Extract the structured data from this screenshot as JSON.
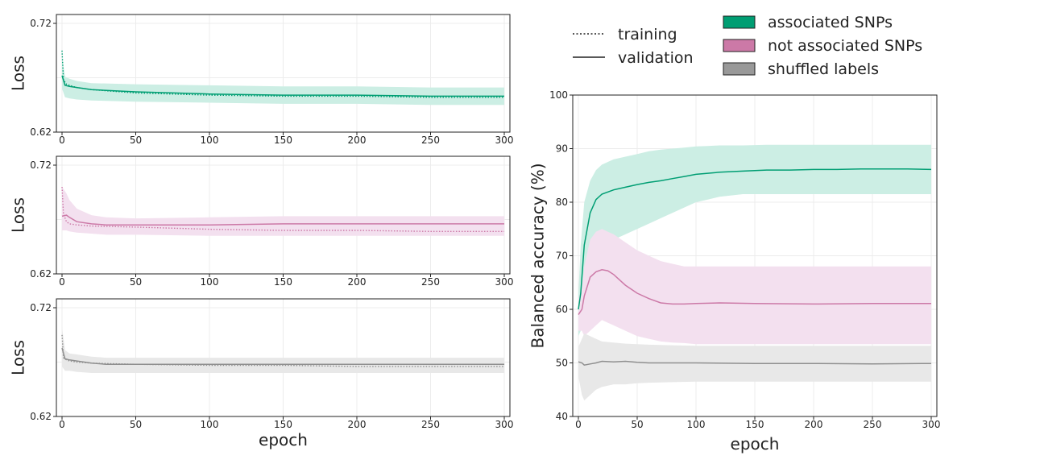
{
  "colors": {
    "associated": "#009e73",
    "not_associated": "#cc79a7",
    "shuffled": "#8f8f8f",
    "associated_band": "#cceee4",
    "not_associated_band": "#f3e0ef",
    "shuffled_band": "#e8e8e8"
  },
  "legend": {
    "line_styles": [
      {
        "label": "training",
        "style": "dotted"
      },
      {
        "label": "validation",
        "style": "solid"
      }
    ],
    "groups": [
      {
        "label": "associated SNPs",
        "color": "#009e73"
      },
      {
        "label": "not associated SNPs",
        "color": "#cc79a7"
      },
      {
        "label": "shuffled labels",
        "color": "#999999"
      }
    ]
  },
  "chart_data": [
    {
      "type": "line",
      "panel": "loss-associated",
      "ylabel": "Loss",
      "xlabel": "",
      "xlim": [
        0,
        300
      ],
      "ylim": [
        0.62,
        0.72
      ],
      "xticks": [
        0,
        50,
        100,
        150,
        200,
        250,
        300
      ],
      "yticks": [
        0.62,
        0.72
      ],
      "series": [
        {
          "style": "validation",
          "color": "#009e73",
          "x": [
            0,
            2,
            5,
            10,
            20,
            50,
            100,
            150,
            200,
            250,
            300
          ],
          "y": [
            0.672,
            0.663,
            0.662,
            0.661,
            0.659,
            0.657,
            0.655,
            0.654,
            0.654,
            0.653,
            0.653
          ],
          "band_lower": [
            0.66,
            0.652,
            0.651,
            0.65,
            0.649,
            0.648,
            0.647,
            0.646,
            0.646,
            0.645,
            0.645
          ],
          "band_upper": [
            0.69,
            0.671,
            0.669,
            0.667,
            0.665,
            0.664,
            0.663,
            0.662,
            0.662,
            0.661,
            0.661
          ]
        },
        {
          "style": "training",
          "color": "#009e73",
          "x": [
            0,
            1,
            3,
            5,
            10,
            20,
            50,
            100,
            150,
            200,
            250,
            300
          ],
          "y": [
            0.695,
            0.668,
            0.664,
            0.663,
            0.661,
            0.659,
            0.656,
            0.654,
            0.653,
            0.653,
            0.652,
            0.652
          ]
        }
      ]
    },
    {
      "type": "line",
      "panel": "loss-not-associated",
      "ylabel": "Loss",
      "xlabel": "",
      "xlim": [
        0,
        300
      ],
      "ylim": [
        0.62,
        0.72
      ],
      "xticks": [
        0,
        50,
        100,
        150,
        200,
        250,
        300
      ],
      "yticks": [
        0.62,
        0.72
      ],
      "series": [
        {
          "style": "validation",
          "color": "#cc79a7",
          "x": [
            0,
            3,
            5,
            10,
            20,
            30,
            50,
            100,
            150,
            200,
            250,
            300
          ],
          "y": [
            0.673,
            0.674,
            0.672,
            0.668,
            0.666,
            0.665,
            0.665,
            0.665,
            0.666,
            0.666,
            0.666,
            0.666
          ],
          "band_lower": [
            0.66,
            0.66,
            0.659,
            0.658,
            0.657,
            0.656,
            0.656,
            0.655,
            0.655,
            0.655,
            0.655,
            0.655
          ],
          "band_upper": [
            0.7,
            0.694,
            0.688,
            0.68,
            0.674,
            0.672,
            0.671,
            0.672,
            0.673,
            0.673,
            0.673,
            0.673
          ]
        },
        {
          "style": "training",
          "color": "#cc79a7",
          "x": [
            0,
            1,
            3,
            5,
            10,
            20,
            50,
            100,
            150,
            200,
            250,
            300
          ],
          "y": [
            0.7,
            0.675,
            0.668,
            0.666,
            0.665,
            0.664,
            0.663,
            0.661,
            0.66,
            0.66,
            0.659,
            0.659
          ]
        }
      ]
    },
    {
      "type": "line",
      "panel": "loss-shuffled",
      "ylabel": "Loss",
      "xlabel": "epoch",
      "xlim": [
        0,
        300
      ],
      "ylim": [
        0.62,
        0.72
      ],
      "xticks": [
        0,
        50,
        100,
        150,
        200,
        250,
        300
      ],
      "yticks": [
        0.62,
        0.72
      ],
      "series": [
        {
          "style": "validation",
          "color": "#8f8f8f",
          "x": [
            0,
            2,
            5,
            10,
            20,
            30,
            50,
            100,
            150,
            200,
            250,
            300
          ],
          "y": [
            0.683,
            0.673,
            0.672,
            0.671,
            0.669,
            0.668,
            0.668,
            0.668,
            0.668,
            0.668,
            0.668,
            0.668
          ],
          "band_lower": [
            0.666,
            0.662,
            0.662,
            0.661,
            0.66,
            0.66,
            0.66,
            0.66,
            0.66,
            0.66,
            0.66,
            0.66
          ],
          "band_upper": [
            0.702,
            0.681,
            0.678,
            0.677,
            0.675,
            0.674,
            0.674,
            0.674,
            0.674,
            0.674,
            0.674,
            0.674
          ]
        },
        {
          "style": "training",
          "color": "#8f8f8f",
          "x": [
            0,
            1,
            3,
            5,
            10,
            20,
            50,
            100,
            150,
            200,
            250,
            300
          ],
          "y": [
            0.695,
            0.674,
            0.672,
            0.671,
            0.67,
            0.669,
            0.668,
            0.667,
            0.667,
            0.666,
            0.666,
            0.666
          ]
        }
      ]
    },
    {
      "type": "line",
      "panel": "balanced-accuracy",
      "ylabel": "Balanced accuracy (%)",
      "xlabel": "epoch",
      "xlim": [
        0,
        300
      ],
      "ylim": [
        40,
        100
      ],
      "xticks": [
        0,
        50,
        100,
        150,
        200,
        250,
        300
      ],
      "yticks": [
        40,
        50,
        60,
        70,
        80,
        90,
        100
      ],
      "series": [
        {
          "style": "validation",
          "color": "#009e73",
          "x": [
            0,
            2,
            5,
            10,
            15,
            20,
            30,
            40,
            50,
            60,
            70,
            80,
            90,
            100,
            110,
            120,
            140,
            160,
            180,
            200,
            220,
            240,
            260,
            280,
            300
          ],
          "y": [
            60.0,
            63.0,
            72.0,
            78.0,
            80.5,
            81.5,
            82.3,
            82.8,
            83.3,
            83.7,
            84.0,
            84.4,
            84.8,
            85.2,
            85.4,
            85.6,
            85.8,
            86.0,
            86.0,
            86.1,
            86.1,
            86.2,
            86.2,
            86.2,
            86.1
          ],
          "band_lower": [
            55.0,
            56.0,
            60.0,
            66.0,
            69.0,
            71.0,
            73.0,
            74.0,
            75.0,
            76.0,
            77.0,
            78.0,
            79.0,
            80.0,
            80.5,
            81.0,
            81.5,
            81.5,
            81.5,
            81.5,
            81.5,
            81.5,
            81.5,
            81.5,
            81.5
          ],
          "band_upper": [
            63.0,
            72.0,
            80.0,
            84.0,
            86.0,
            87.0,
            88.0,
            88.5,
            89.0,
            89.5,
            89.8,
            90.0,
            90.2,
            90.4,
            90.5,
            90.6,
            90.6,
            90.7,
            90.7,
            90.7,
            90.7,
            90.7,
            90.7,
            90.7,
            90.7
          ]
        },
        {
          "style": "validation",
          "color": "#cc79a7",
          "x": [
            0,
            3,
            5,
            10,
            15,
            20,
            25,
            30,
            40,
            50,
            60,
            70,
            80,
            90,
            100,
            120,
            150,
            200,
            250,
            300
          ],
          "y": [
            59.0,
            60.0,
            62.5,
            66.0,
            67.0,
            67.4,
            67.2,
            66.5,
            64.5,
            63.0,
            62.0,
            61.2,
            61.0,
            61.0,
            61.1,
            61.2,
            61.1,
            61.0,
            61.1,
            61.1
          ],
          "band_lower": [
            56.0,
            56.0,
            55.0,
            56.0,
            57.0,
            58.0,
            57.5,
            57.0,
            56.0,
            55.0,
            54.5,
            54.0,
            53.8,
            53.7,
            53.5,
            53.5,
            53.5,
            53.5,
            53.5,
            53.5
          ],
          "band_upper": [
            62.0,
            64.0,
            68.0,
            73.0,
            74.5,
            75.0,
            74.5,
            74.0,
            72.5,
            71.0,
            70.0,
            69.0,
            68.5,
            68.0,
            68.0,
            68.0,
            68.0,
            68.0,
            68.0,
            68.0
          ]
        },
        {
          "style": "validation",
          "color": "#8f8f8f",
          "x": [
            0,
            3,
            5,
            10,
            15,
            20,
            30,
            40,
            50,
            60,
            80,
            100,
            150,
            200,
            250,
            300
          ],
          "y": [
            50.2,
            50.0,
            49.6,
            49.8,
            50.0,
            50.3,
            50.2,
            50.3,
            50.1,
            50.0,
            50.0,
            50.0,
            49.9,
            49.9,
            49.8,
            49.9
          ],
          "band_lower": [
            47.5,
            44.0,
            43.0,
            44.0,
            45.0,
            45.5,
            46.0,
            46.0,
            46.2,
            46.3,
            46.4,
            46.5,
            46.5,
            46.5,
            46.5,
            46.5
          ],
          "band_upper": [
            53.0,
            54.5,
            55.5,
            55.0,
            54.5,
            54.0,
            53.8,
            53.6,
            53.5,
            53.4,
            53.3,
            53.2,
            53.2,
            53.2,
            53.2,
            53.2
          ]
        }
      ]
    }
  ]
}
